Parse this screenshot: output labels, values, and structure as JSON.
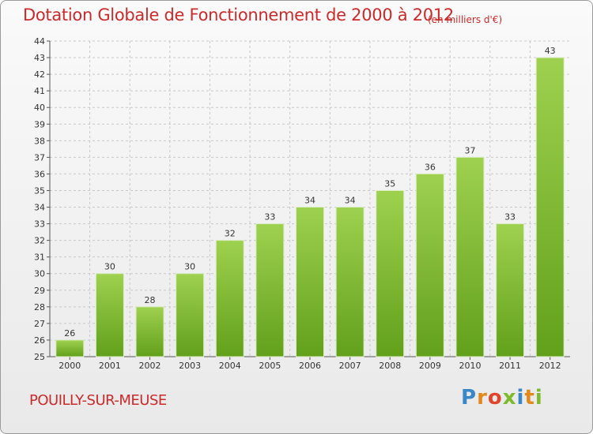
{
  "title": "Dotation Globale de Fonctionnement de 2000 à 2012",
  "subtitle": "(en milliers d'€)",
  "commune": "POUILLY-SUR-MEUSE",
  "brand": {
    "letters": [
      {
        "ch": "P",
        "color": "#3a87c8"
      },
      {
        "ch": "r",
        "color": "#e08a1e"
      },
      {
        "ch": "o",
        "color": "#e0452b"
      },
      {
        "ch": "x",
        "color": "#7dbb2c"
      },
      {
        "ch": "i",
        "color": "#3a87c8"
      },
      {
        "ch": "t",
        "color": "#e08a1e"
      },
      {
        "ch": "i",
        "color": "#7dbb2c"
      }
    ]
  },
  "colors": {
    "bar_top": "#9ed14f",
    "bar_bottom": "#62a01b",
    "grid": "#c8c8c8",
    "text_red": "#cc2a2a"
  },
  "chart_data": {
    "type": "bar",
    "categories": [
      "2000",
      "2001",
      "2002",
      "2003",
      "2004",
      "2005",
      "2006",
      "2007",
      "2008",
      "2009",
      "2010",
      "2011",
      "2012"
    ],
    "values": [
      26,
      30,
      28,
      30,
      32,
      33,
      34,
      34,
      35,
      36,
      37,
      33,
      43
    ],
    "ylim": [
      25,
      44
    ],
    "yticks": [
      25,
      26,
      27,
      28,
      29,
      30,
      31,
      32,
      33,
      34,
      35,
      36,
      37,
      38,
      39,
      40,
      41,
      42,
      43,
      44
    ],
    "grid": true,
    "xlabel": "",
    "ylabel": ""
  }
}
